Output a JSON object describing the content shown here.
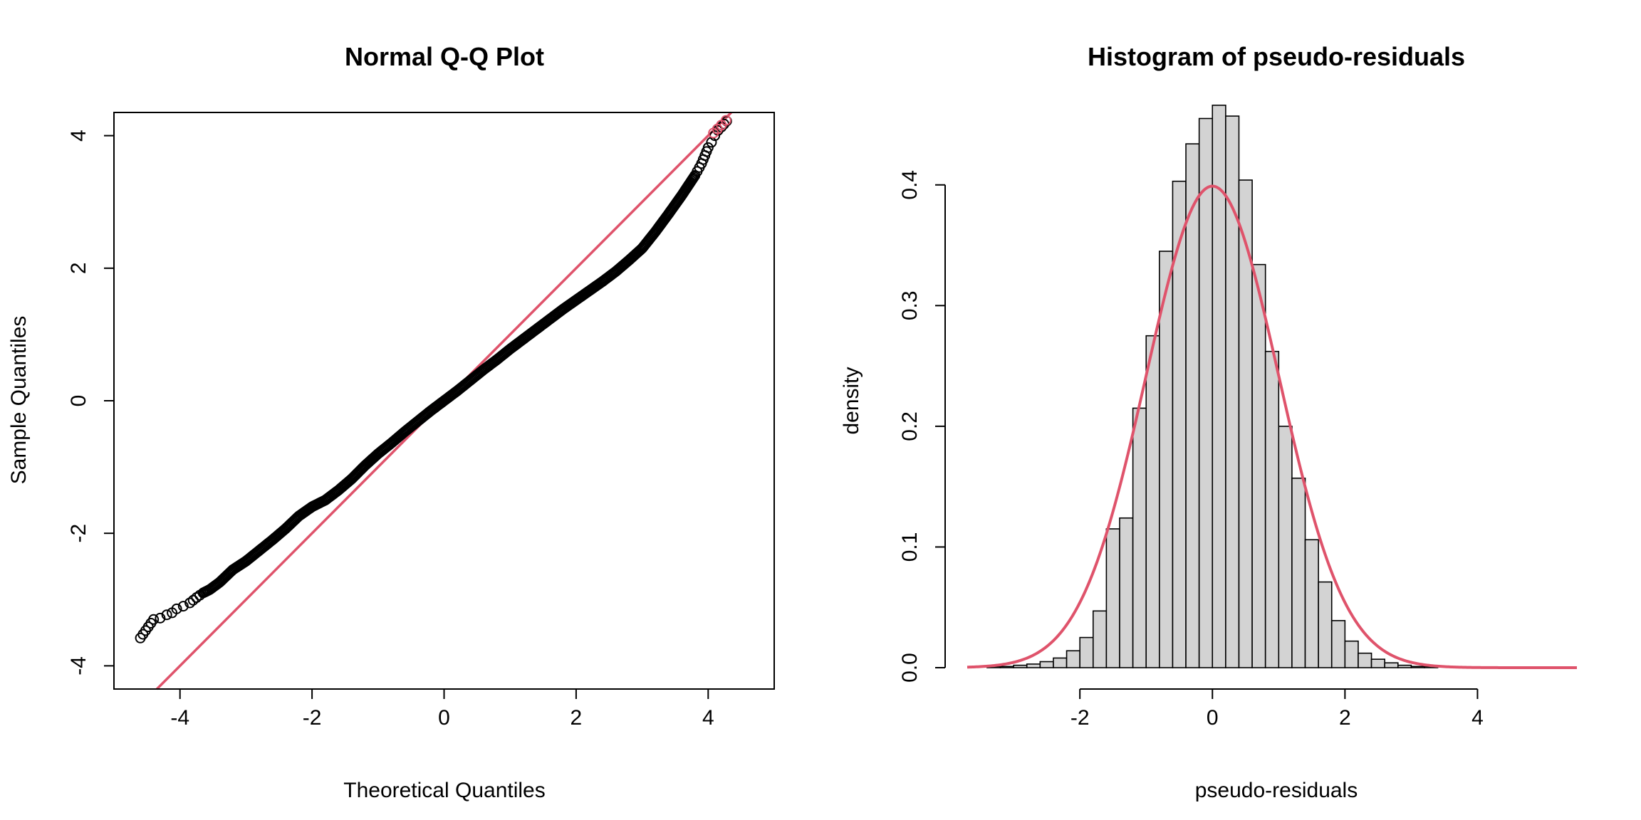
{
  "chart_data": [
    {
      "type": "scatter",
      "title": "Normal Q-Q Plot",
      "xlabel": "Theoretical Quantiles",
      "ylabel": "Sample Quantiles",
      "xlim": [
        -5,
        5
      ],
      "ylim": [
        -4.35,
        4.35
      ],
      "xticks": [
        "-4",
        "-2",
        "0",
        "2",
        "4"
      ],
      "yticks": [
        "-4",
        "-2",
        "0",
        "2",
        "4"
      ],
      "grid": false,
      "point_color": "#000000",
      "highlight_color": "#DF536B",
      "line_color": "#DF536B",
      "reference_line": {
        "slope": 1,
        "intercept": 0
      },
      "points": [
        {
          "x": -4.6,
          "y": -3.58
        },
        {
          "x": -4.4,
          "y": -3.3
        },
        {
          "x": -4.3,
          "y": -3.28
        },
        {
          "x": -4.2,
          "y": -3.23
        },
        {
          "x": -4.12,
          "y": -3.2
        },
        {
          "x": -4.05,
          "y": -3.14
        },
        {
          "x": -3.95,
          "y": -3.1
        },
        {
          "x": -3.85,
          "y": -3.05
        },
        {
          "x": -3.75,
          "y": -2.97
        },
        {
          "x": -3.65,
          "y": -2.9
        },
        {
          "x": -3.55,
          "y": -2.85
        },
        {
          "x": -3.4,
          "y": -2.74
        },
        {
          "x": -3.2,
          "y": -2.55
        },
        {
          "x": -3.0,
          "y": -2.42
        },
        {
          "x": -2.8,
          "y": -2.26
        },
        {
          "x": -2.6,
          "y": -2.1
        },
        {
          "x": -2.4,
          "y": -1.93
        },
        {
          "x": -2.2,
          "y": -1.74
        },
        {
          "x": -2.0,
          "y": -1.6
        },
        {
          "x": -1.8,
          "y": -1.5
        },
        {
          "x": -1.6,
          "y": -1.35
        },
        {
          "x": -1.4,
          "y": -1.18
        },
        {
          "x": -1.2,
          "y": -0.98
        },
        {
          "x": -1.0,
          "y": -0.8
        },
        {
          "x": -0.8,
          "y": -0.64
        },
        {
          "x": -0.6,
          "y": -0.47
        },
        {
          "x": -0.4,
          "y": -0.31
        },
        {
          "x": -0.2,
          "y": -0.15
        },
        {
          "x": 0.0,
          "y": 0.0
        },
        {
          "x": 0.2,
          "y": 0.15
        },
        {
          "x": 0.4,
          "y": 0.31
        },
        {
          "x": 0.6,
          "y": 0.47
        },
        {
          "x": 0.8,
          "y": 0.62
        },
        {
          "x": 1.0,
          "y": 0.78
        },
        {
          "x": 1.2,
          "y": 0.93
        },
        {
          "x": 1.4,
          "y": 1.08
        },
        {
          "x": 1.6,
          "y": 1.23
        },
        {
          "x": 1.8,
          "y": 1.38
        },
        {
          "x": 2.0,
          "y": 1.52
        },
        {
          "x": 2.2,
          "y": 1.66
        },
        {
          "x": 2.4,
          "y": 1.8
        },
        {
          "x": 2.6,
          "y": 1.95
        },
        {
          "x": 2.8,
          "y": 2.12
        },
        {
          "x": 3.0,
          "y": 2.3
        },
        {
          "x": 3.2,
          "y": 2.55
        },
        {
          "x": 3.4,
          "y": 2.82
        },
        {
          "x": 3.6,
          "y": 3.1
        },
        {
          "x": 3.8,
          "y": 3.4
        },
        {
          "x": 3.9,
          "y": 3.58
        },
        {
          "x": 3.95,
          "y": 3.7
        },
        {
          "x": 4.0,
          "y": 3.82
        },
        {
          "x": 4.05,
          "y": 3.9
        },
        {
          "x": 4.1,
          "y": 4.0
        },
        {
          "x": 4.15,
          "y": 4.08
        },
        {
          "x": 4.2,
          "y": 4.13
        },
        {
          "x": 4.28,
          "y": 4.22
        }
      ],
      "highlight_points": [
        {
          "x": 4.08,
          "y": 4.04
        },
        {
          "x": 4.14,
          "y": 4.1
        },
        {
          "x": 4.2,
          "y": 4.16
        },
        {
          "x": 4.27,
          "y": 4.23
        }
      ]
    },
    {
      "type": "bar",
      "title": "Histogram of pseudo-residuals",
      "xlabel": "pseudo-residuals",
      "ylabel": "density",
      "xlim": [
        -3.7,
        5.5
      ],
      "ylim": [
        0,
        0.46
      ],
      "xticks": [
        "-2",
        "0",
        "2",
        "4"
      ],
      "yticks": [
        "0.0",
        "0.1",
        "0.2",
        "0.3",
        "0.4"
      ],
      "grid": false,
      "bar_color": "#D3D3D3",
      "curve_color": "#DF536B",
      "curve": "standard normal density",
      "bin_width": 0.2,
      "bins_start": -3.4,
      "densities": [
        0.001,
        0.001,
        0.002,
        0.003,
        0.005,
        0.008,
        0.014,
        0.025,
        0.047,
        0.115,
        0.124,
        0.215,
        0.275,
        0.345,
        0.403,
        0.434,
        0.455,
        0.466,
        0.457,
        0.404,
        0.334,
        0.262,
        0.2,
        0.157,
        0.106,
        0.071,
        0.039,
        0.022,
        0.012,
        0.007,
        0.004,
        0.002,
        0.001,
        0.001
      ]
    }
  ]
}
